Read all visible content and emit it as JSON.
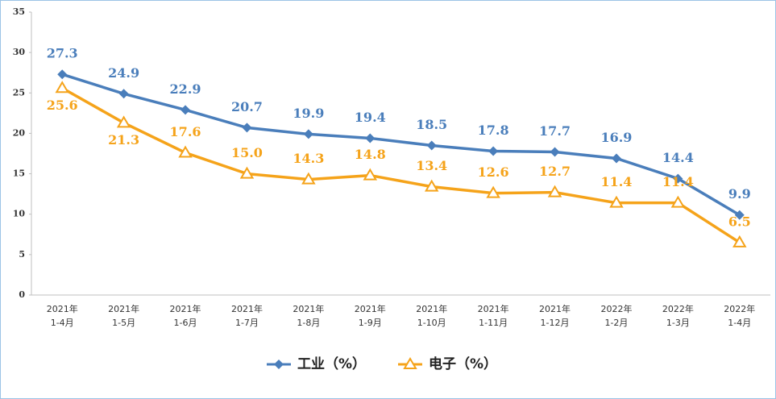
{
  "chart_data": {
    "type": "line",
    "categories": [
      "2021年\n1-4月",
      "2021年\n1-5月",
      "2021年\n1-6月",
      "2021年\n1-7月",
      "2021年\n1-8月",
      "2021年\n1-9月",
      "2021年\n1-10月",
      "2021年\n1-11月",
      "2021年\n1-12月",
      "2022年\n1-2月",
      "2022年\n1-3月",
      "2022年\n1-4月"
    ],
    "series": [
      {
        "name": "工业（%）",
        "color": "#4a7ebb",
        "marker": "diamond",
        "values": [
          27.3,
          24.9,
          22.9,
          20.7,
          19.9,
          19.4,
          18.5,
          17.8,
          17.7,
          16.9,
          14.4,
          9.9
        ]
      },
      {
        "name": "电子（%）",
        "color": "#f5a31a",
        "marker": "triangle",
        "values": [
          25.6,
          21.3,
          17.6,
          15.0,
          14.3,
          14.8,
          13.4,
          12.6,
          12.7,
          11.4,
          11.4,
          6.5
        ],
        "value_labels": [
          "25.6",
          "21.3",
          "17.6",
          "15.0",
          "14.3",
          "14.8",
          "13.4",
          "12.6",
          "12.7",
          "11.4",
          "11.4",
          "6.5"
        ]
      }
    ],
    "ylim": [
      0,
      35
    ],
    "yticks": [
      0,
      5,
      10,
      15,
      20,
      25,
      30,
      35
    ],
    "grid": false,
    "legend": "bottom"
  }
}
